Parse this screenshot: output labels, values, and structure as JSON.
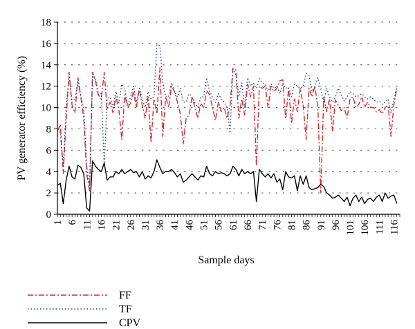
{
  "chart_data": {
    "type": "line",
    "ylabel": "PV generator efficiency (%)",
    "xlabel": "Sample days",
    "ylim": [
      0,
      18
    ],
    "yticks": [
      "0",
      "2",
      "4",
      "6",
      "8",
      "10",
      "12",
      "14",
      "16",
      "18"
    ],
    "xlim": [
      1,
      118
    ],
    "xtick_values": [
      1,
      6,
      11,
      16,
      21,
      26,
      31,
      36,
      41,
      46,
      51,
      56,
      61,
      66,
      71,
      76,
      81,
      86,
      91,
      96,
      101,
      106,
      111,
      116
    ],
    "xticks": [
      "1",
      "6",
      "11",
      "16",
      "21",
      "26",
      "31",
      "36",
      "41",
      "46",
      "51",
      "56",
      "61",
      "66",
      "71",
      "76",
      "81",
      "86",
      "91",
      "96",
      "101",
      "106",
      "111",
      "116"
    ],
    "grid": "horizontal dotted",
    "legend_position": "bottom-left",
    "series": [
      {
        "name": "FF",
        "color": "#d62728",
        "dash": "dashdot",
        "values": [
          7.8,
          8.4,
          3.8,
          9.0,
          13.3,
          10.2,
          9.5,
          12.8,
          11.0,
          9.0,
          3.8,
          2.2,
          13.3,
          12.5,
          11.2,
          10.8,
          13.3,
          9.8,
          10.5,
          9.5,
          11.0,
          9.8,
          7.0,
          11.2,
          10.0,
          10.4,
          11.5,
          10.0,
          11.8,
          10.2,
          9.0,
          11.0,
          6.7,
          10.8,
          9.4,
          13.7,
          7.3,
          11.0,
          10.0,
          12.0,
          11.5,
          10.5,
          9.4,
          6.6,
          9.0,
          9.3,
          11.0,
          10.0,
          9.0,
          10.4,
          10.0,
          11.6,
          11.2,
          10.0,
          8.8,
          10.5,
          9.6,
          10.0,
          9.0,
          10.2,
          13.7,
          13.5,
          9.0,
          10.8,
          9.3,
          12.2,
          11.0,
          12.0,
          4.5,
          12.0,
          11.8,
          12.0,
          10.0,
          12.0,
          11.5,
          11.8,
          12.5,
          12.6,
          8.9,
          11.8,
          8.5,
          10.8,
          9.6,
          11.8,
          10.2,
          7.0,
          11.8,
          11.0,
          12.0,
          10.0,
          2.0,
          11.0,
          9.6,
          10.8,
          7.8,
          10.7,
          10.2,
          9.7,
          10.0,
          9.0,
          10.8,
          11.0,
          10.0,
          10.3,
          11.0,
          10.0,
          10.5,
          10.0,
          10.0,
          9.6,
          9.8,
          9.4,
          10.0,
          10.2,
          7.3,
          10.3,
          11.8
        ]
      },
      {
        "name": "TF",
        "color": "#1f3fa3",
        "dash": "dot",
        "values": [
          8.0,
          7.5,
          4.5,
          10.0,
          13.0,
          10.5,
          10.8,
          12.5,
          11.0,
          10.0,
          4.5,
          2.6,
          13.0,
          12.8,
          11.2,
          11.3,
          4.6,
          10.8,
          11.0,
          10.0,
          11.5,
          10.4,
          12.2,
          11.8,
          10.2,
          11.0,
          12.0,
          10.5,
          11.8,
          10.8,
          10.0,
          11.5,
          10.8,
          11.0,
          15.9,
          15.8,
          12.3,
          11.0,
          11.0,
          12.3,
          11.5,
          11.0,
          11.8,
          10.5,
          10.5,
          11.3,
          11.0,
          10.4,
          10.0,
          11.0,
          11.0,
          12.8,
          11.5,
          11.0,
          10.5,
          11.3,
          10.8,
          10.5,
          10.0,
          7.6,
          13.6,
          13.0,
          11.0,
          12.3,
          10.0,
          12.8,
          12.0,
          12.3,
          11.8,
          12.7,
          12.3,
          12.2,
          11.5,
          12.2,
          11.8,
          12.0,
          11.3,
          12.3,
          11.8,
          11.9,
          11.0,
          12.2,
          12.0,
          11.8,
          12.0,
          13.2,
          13.0,
          11.5,
          12.0,
          12.8,
          11.8,
          10.5,
          11.8,
          11.0,
          10.5,
          11.0,
          11.8,
          11.2,
          10.6,
          11.0,
          11.5,
          11.3,
          11.0,
          11.1,
          11.3,
          11.0,
          10.8,
          11.0,
          10.8,
          10.5,
          10.6,
          10.3,
          10.5,
          10.8,
          9.5,
          10.8,
          12.0
        ]
      },
      {
        "name": "CPV",
        "color": "#000000",
        "dash": "solid",
        "values": [
          2.7,
          2.9,
          1.0,
          3.2,
          4.5,
          3.5,
          3.3,
          4.6,
          4.4,
          3.8,
          0.6,
          0.3,
          5.0,
          4.5,
          4.2,
          4.0,
          4.8,
          3.2,
          3.5,
          3.5,
          4.0,
          3.8,
          4.2,
          3.8,
          4.0,
          4.2,
          3.9,
          4.0,
          3.5,
          4.0,
          3.3,
          3.6,
          3.4,
          4.0,
          5.1,
          4.4,
          3.8,
          4.0,
          4.0,
          4.2,
          3.9,
          3.5,
          3.8,
          3.0,
          3.2,
          3.5,
          3.8,
          3.5,
          3.2,
          3.6,
          3.5,
          4.5,
          3.8,
          3.6,
          4.0,
          3.8,
          3.9,
          3.8,
          3.6,
          3.8,
          4.5,
          4.2,
          3.6,
          4.2,
          3.8,
          4.0,
          3.8,
          4.0,
          1.2,
          4.2,
          3.8,
          3.5,
          3.8,
          3.4,
          3.8,
          3.0,
          3.3,
          2.3,
          4.0,
          3.5,
          3.4,
          3.6,
          2.2,
          3.6,
          2.8,
          3.6,
          2.5,
          2.3,
          2.4,
          2.5,
          2.8,
          2.6,
          2.0,
          1.8,
          1.5,
          1.6,
          1.8,
          1.5,
          1.2,
          1.6,
          0.8,
          1.5,
          1.8,
          1.2,
          1.6,
          1.0,
          1.4,
          1.5,
          1.2,
          1.6,
          1.8,
          1.2,
          2.0,
          1.5,
          1.7,
          1.8,
          1.0
        ]
      }
    ]
  }
}
